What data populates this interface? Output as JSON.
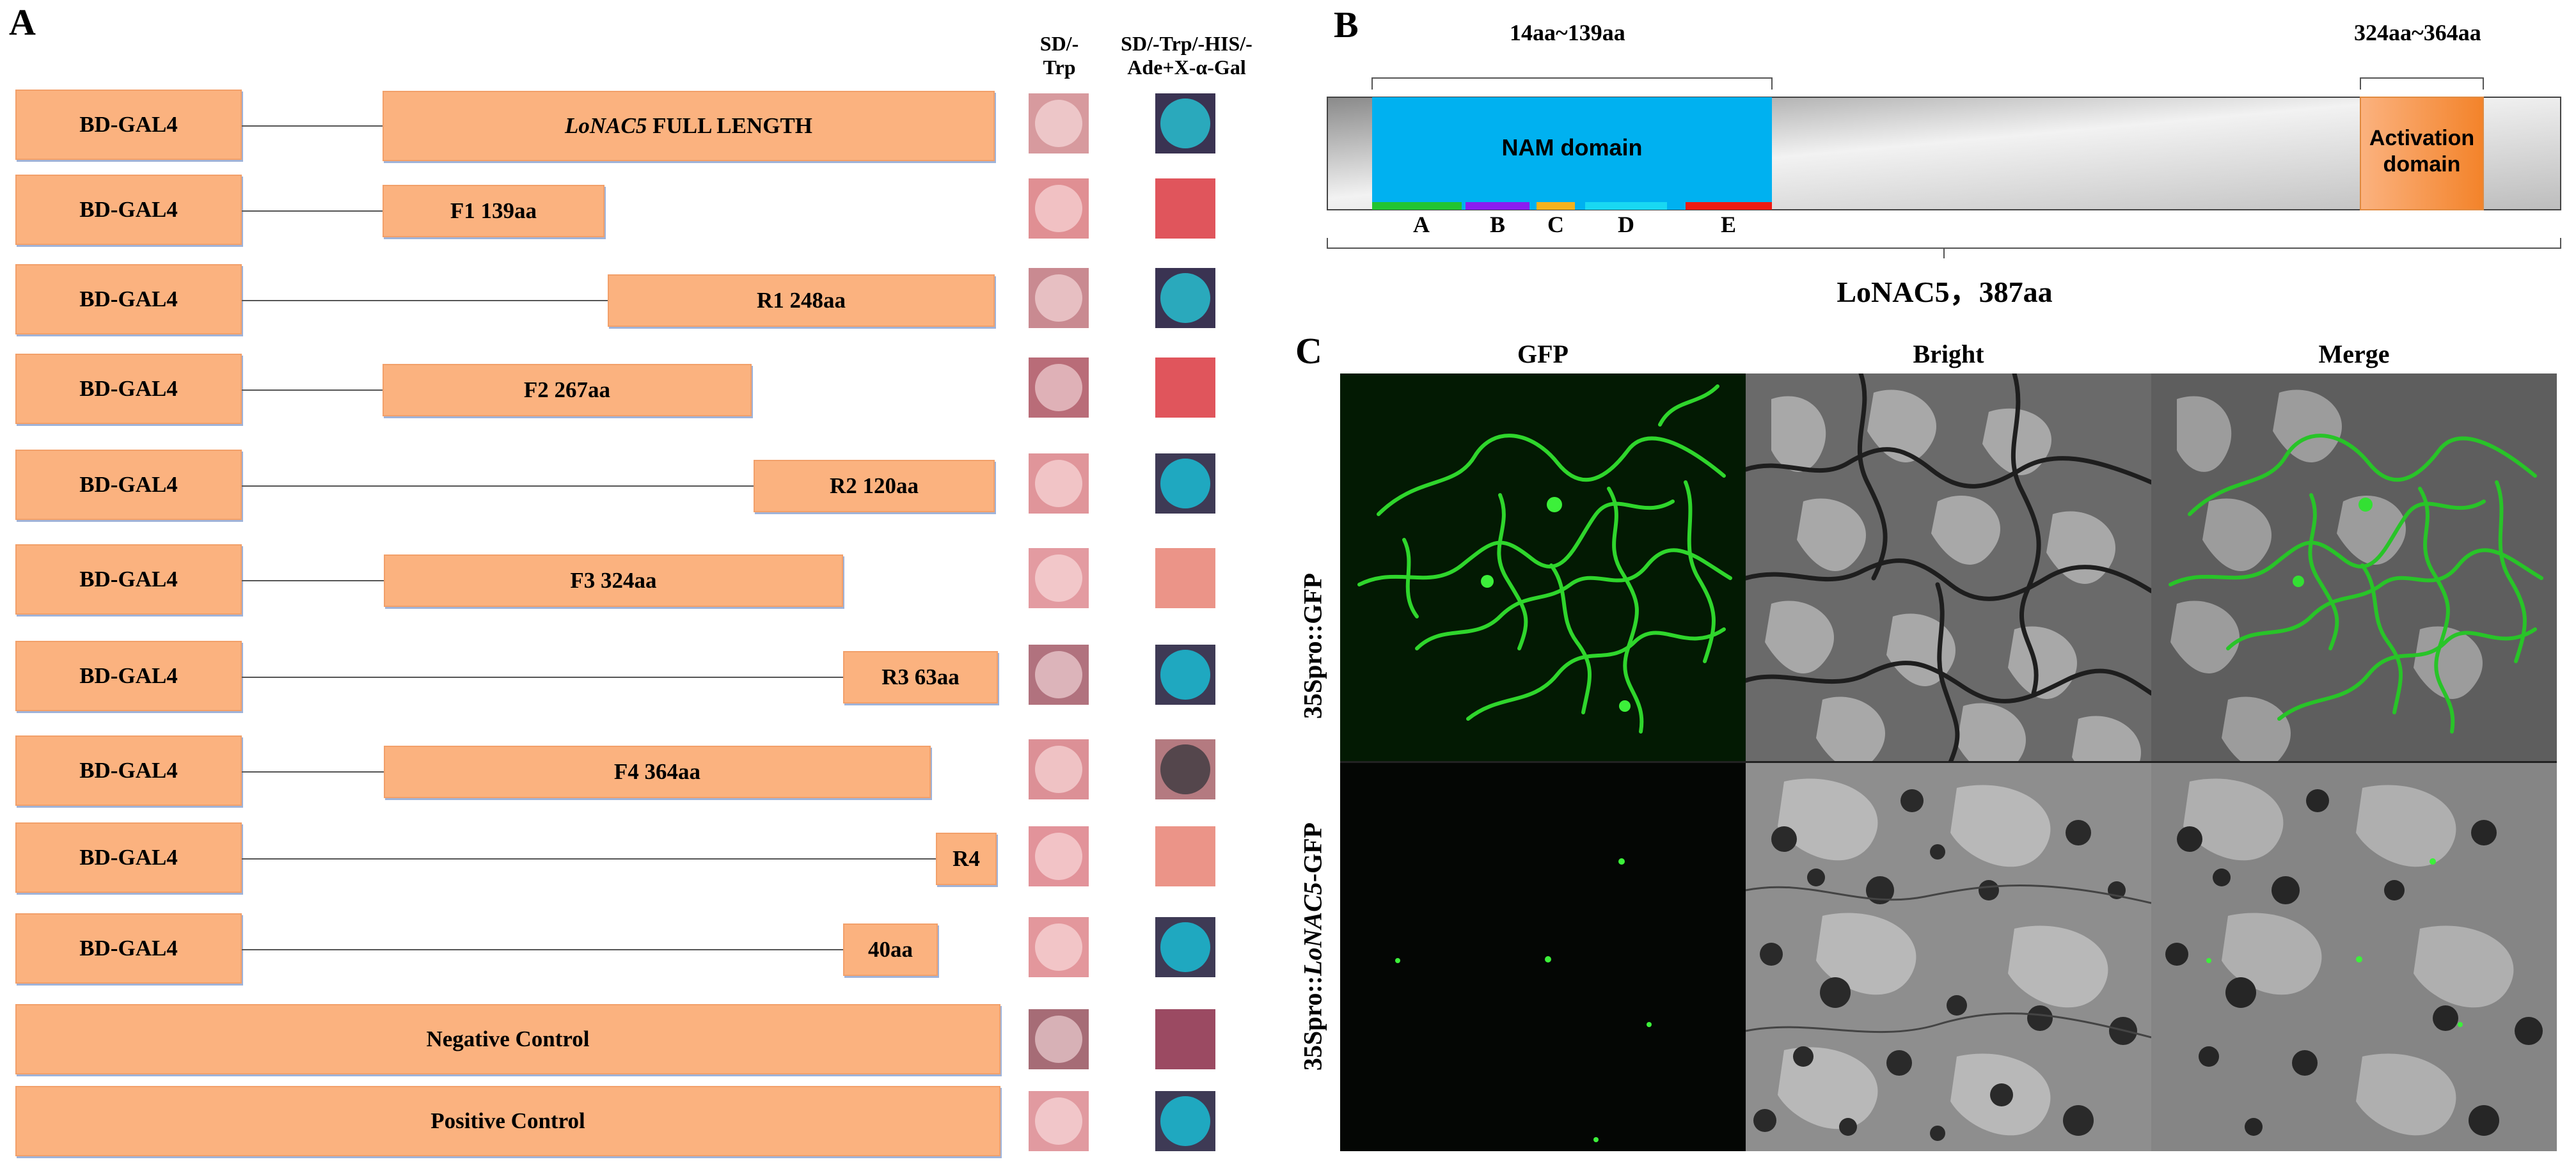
{
  "panels": {
    "a": "A",
    "b": "B",
    "c": "C"
  },
  "panel_a": {
    "col_heads": {
      "sd_trp": "SD/-\nTrp",
      "sd_quad": "SD/-Trp/-HIS/-\nAde+X-α-Gal"
    },
    "rows": [
      {
        "bd": "BD-GAL4",
        "construct_italic": "LoNAC5",
        "construct": " FULL LENGTH",
        "plate1": "#d79a9e",
        "plate2": "blue-dark"
      },
      {
        "bd": "BD-GAL4",
        "construct": "F1 139aa",
        "plate1": "#e08f93",
        "plate2": "red"
      },
      {
        "bd": "BD-GAL4",
        "construct": "R1 248aa",
        "plate1": "#c98a91",
        "plate2": "blue-dark"
      },
      {
        "bd": "BD-GAL4",
        "construct": "F2 267aa",
        "plate1": "#b96c78",
        "plate2": "red"
      },
      {
        "bd": "BD-GAL4",
        "construct": "R2 120aa",
        "plate1": "#e0959a",
        "plate2": "blue"
      },
      {
        "bd": "BD-GAL4",
        "construct": "F3 324aa",
        "plate1": "#e39ba1",
        "plate2": "salmon"
      },
      {
        "bd": "BD-GAL4",
        "construct": "R3 63aa",
        "plate1": "#b1727e",
        "plate2": "blue"
      },
      {
        "bd": "BD-GAL4",
        "construct": "F4 364aa",
        "plate1": "#dc9096",
        "plate2": "grey"
      },
      {
        "bd": "BD-GAL4",
        "construct": "R4",
        "plate1": "#e2939a",
        "plate2": "salmon"
      },
      {
        "bd": "BD-GAL4",
        "construct": "40aa",
        "plate1": "#e3979c",
        "plate2": "blue"
      },
      {
        "full": "Negative Control",
        "plate1": "#a66c76",
        "plate2": "wine"
      },
      {
        "full": "Positive Control",
        "plate1": "#e19aa0",
        "plate2": "blue"
      }
    ]
  },
  "panel_b": {
    "nam_range": "14aa~139aa",
    "act_range": "324aa~364aa",
    "nam_label": "NAM domain",
    "act_label": "Activation\ndomain",
    "protein": "LoNAC5，387aa",
    "subdomains": [
      {
        "label": "A",
        "color": "#22c431"
      },
      {
        "label": "B",
        "color": "#8a1ef0"
      },
      {
        "label": "C",
        "color": "#f5b21c"
      },
      {
        "label": "D",
        "color": "#19d8f2"
      },
      {
        "label": "E",
        "color": "#ee1a12"
      }
    ]
  },
  "panel_c": {
    "columns": [
      "GFP",
      "Bright",
      "Merge"
    ],
    "row1_label": "35Spro::GFP",
    "row2_label_prefix": "35Spro::",
    "row2_label_italic": "LoNAC5",
    "row2_label_suffix": "-GFP"
  }
}
